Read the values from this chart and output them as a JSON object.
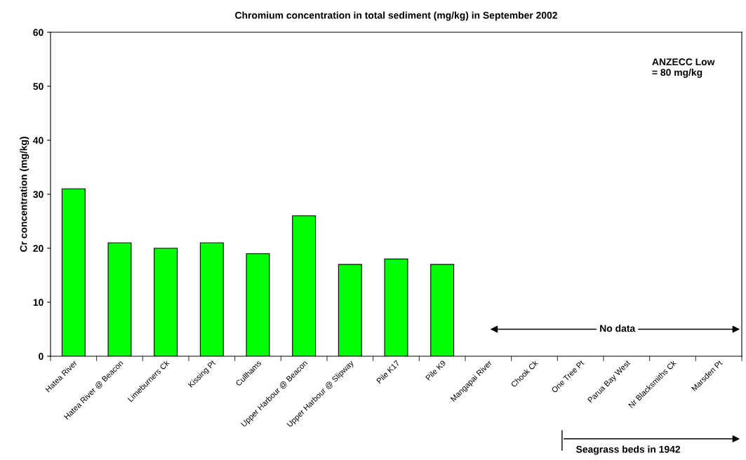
{
  "chart_data": {
    "type": "bar",
    "title": "Chromium concentration in total sediment (mg/kg) in September 2002",
    "ylabel": "Cr concentration (mg/kg)",
    "categories": [
      "Hatea River",
      "Hatea River @ Beacon",
      "Limeburners Ck",
      "Kissing Pt",
      "Cullhams",
      "Upper Harbour @ Beacon",
      "Upper Harbour @ Slipway",
      "Pile K17",
      "Pile K9",
      "Mangapai River",
      "Chook Ck",
      "One Tree Pt",
      "Parua Bay West",
      "Nr Blacksmiths Ck",
      "Marsden Pt"
    ],
    "values": [
      31,
      21,
      20,
      21,
      19,
      26,
      17,
      18,
      17,
      null,
      null,
      null,
      null,
      null,
      null
    ],
    "color": "#00ff00",
    "ylim": [
      0,
      60
    ],
    "yticks": [
      0,
      10,
      20,
      30,
      40,
      50,
      60
    ],
    "grid": false,
    "legend": false,
    "annotations": [
      "ANZECC Low\n= 80 mg/kg",
      "No data",
      "Seagrass beds in 1942"
    ]
  }
}
